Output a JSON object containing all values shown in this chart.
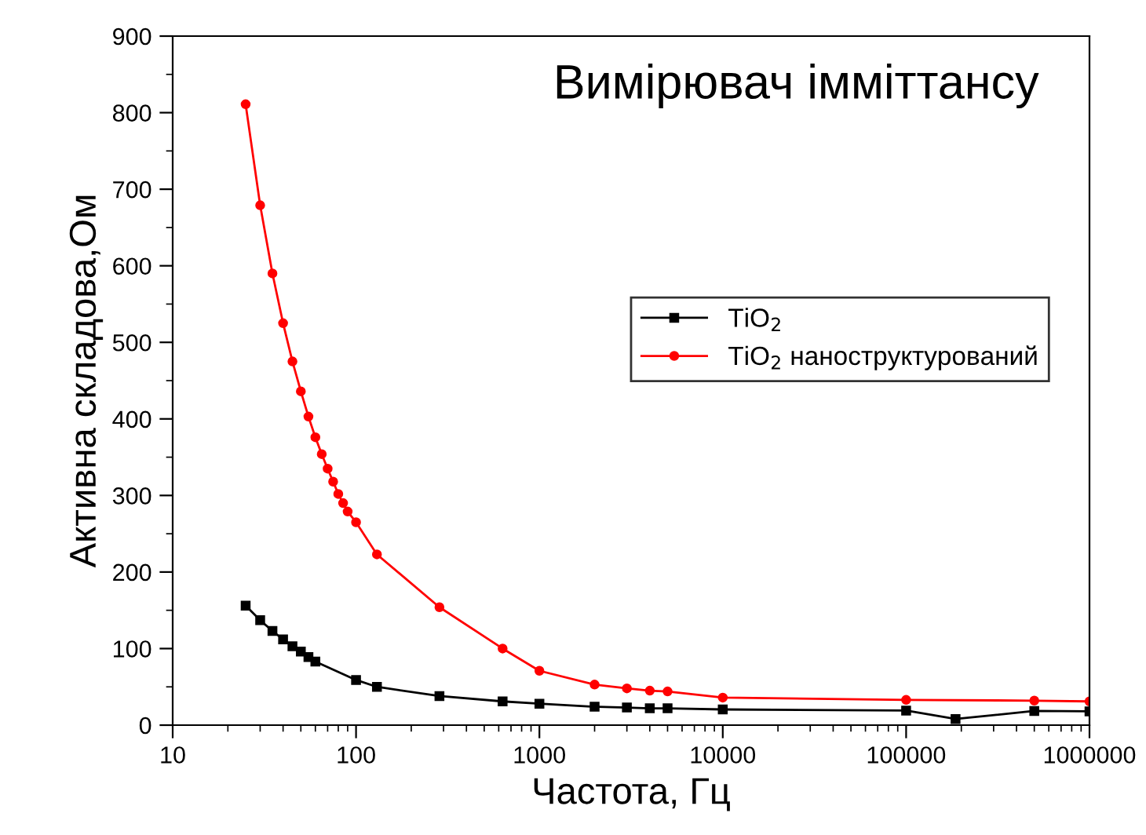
{
  "chart_data": {
    "type": "line",
    "title": "Вимірювач імміттансу",
    "xlabel": "Частота, Гц",
    "ylabel": "Активна складова,Ом",
    "log": "x",
    "xlim": [
      10,
      1000000
    ],
    "xticks": [
      10,
      100,
      1000,
      10000,
      100000,
      1000000
    ],
    "ylim": [
      0,
      900
    ],
    "yticks": [
      0,
      100,
      200,
      300,
      400,
      500,
      600,
      700,
      800,
      900
    ],
    "grid": false,
    "legend": "right",
    "series": [
      {
        "name": "TiO$_{2}$",
        "color": "#000000",
        "marker": "square",
        "x": [
          25,
          30,
          35,
          40,
          45,
          50,
          55,
          60,
          100,
          130,
          285,
          630,
          1000,
          2000,
          3000,
          4000,
          5000,
          10000,
          100000,
          186000,
          500000,
          1000000
        ],
        "values": [
          156,
          137,
          123,
          112,
          103,
          96,
          89,
          83,
          59,
          50,
          38,
          31,
          28,
          24,
          23,
          22,
          22,
          20.5,
          19,
          8,
          18.5,
          18
        ]
      },
      {
        "name": "TiO$_{2}$ наноструктурований",
        "color": "#ff0000",
        "marker": "circle",
        "x": [
          25,
          30,
          35,
          40,
          45,
          50,
          55,
          60,
          65,
          70,
          75,
          80,
          85,
          90,
          100,
          130,
          285,
          630,
          1000,
          2000,
          3000,
          4000,
          5000,
          10000,
          100000,
          500000,
          1000000
        ],
        "values": [
          811,
          679,
          590,
          525,
          475,
          436,
          403,
          376,
          354,
          335,
          318,
          302,
          290,
          279,
          265,
          223,
          154,
          100,
          71,
          53,
          48,
          45,
          44,
          36,
          33,
          32,
          31
        ]
      }
    ]
  }
}
